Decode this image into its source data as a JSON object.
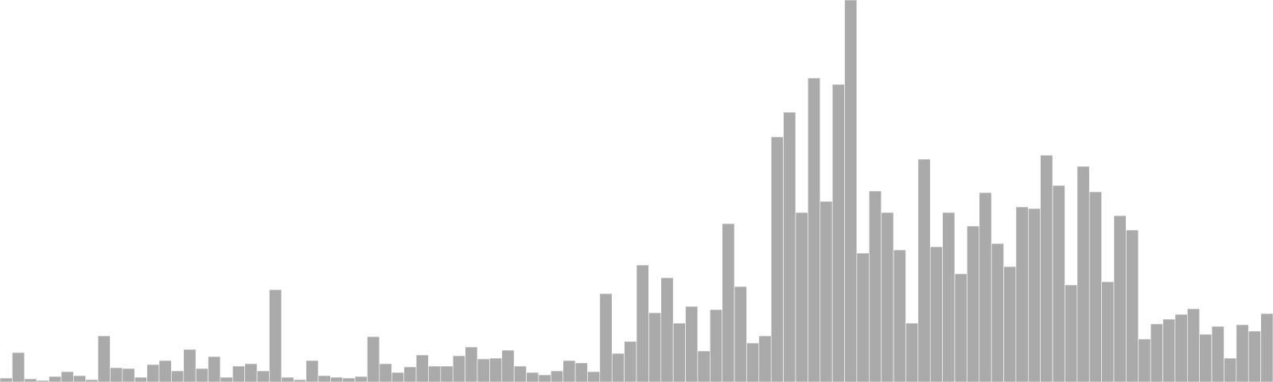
{
  "chart_data": {
    "type": "bar",
    "title": "",
    "xlabel": "",
    "ylabel": "",
    "grid": false,
    "legend": "none",
    "bar_color": "#aaaaaa",
    "ylim": [
      0,
      480
    ],
    "values": [
      5,
      37,
      4,
      2,
      7,
      13,
      8,
      3,
      58,
      18,
      17,
      6,
      22,
      27,
      14,
      41,
      17,
      32,
      6,
      20,
      23,
      14,
      116,
      6,
      3,
      27,
      8,
      6,
      5,
      7,
      57,
      23,
      12,
      19,
      34,
      20,
      20,
      33,
      44,
      29,
      30,
      40,
      20,
      12,
      9,
      14,
      27,
      24,
      13,
      111,
      36,
      51,
      147,
      87,
      131,
      74,
      95,
      39,
      91,
      199,
      120,
      49,
      58,
      308,
      339,
      213,
      382,
      227,
      374,
      480,
      162,
      240,
      213,
      166,
      74,
      280,
      170,
      213,
      136,
      196,
      238,
      174,
      145,
      220,
      218,
      285,
      247,
      122,
      271,
      239,
      126,
      209,
      191,
      54,
      73,
      79,
      85,
      92,
      60,
      70,
      30,
      72,
      64,
      86
    ]
  }
}
